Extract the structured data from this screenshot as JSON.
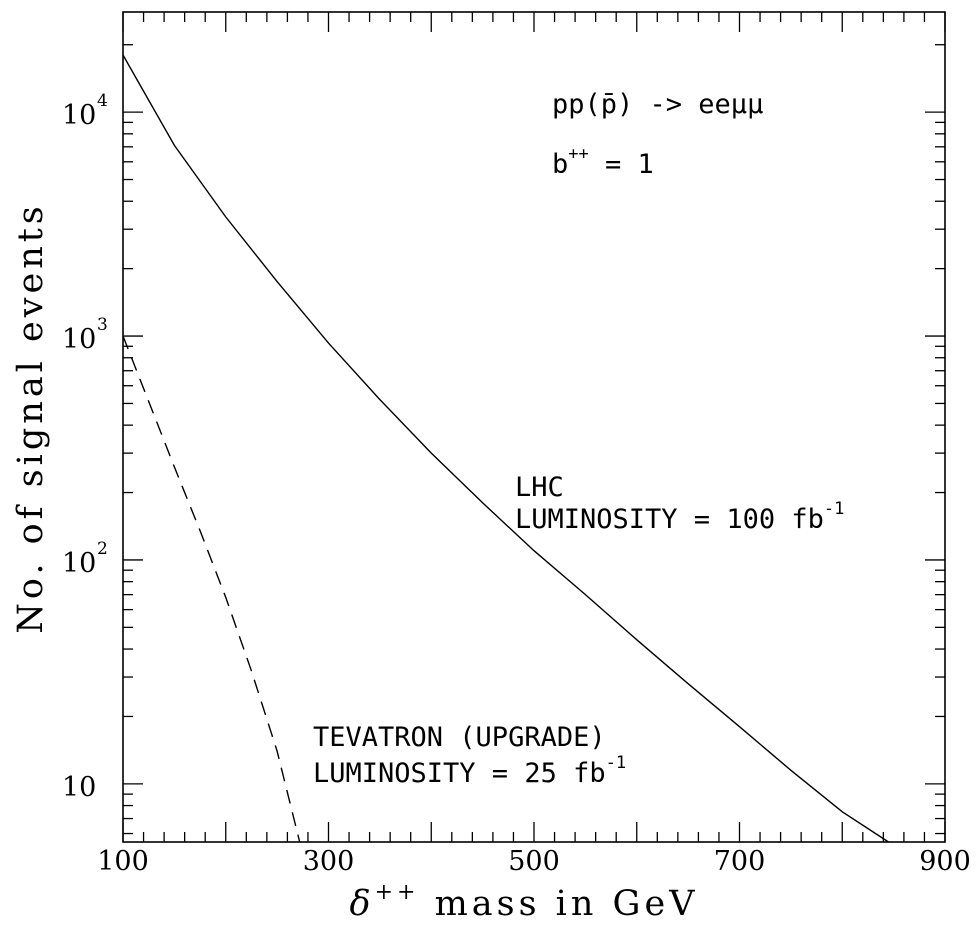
{
  "chart_data": {
    "type": "line",
    "xlabel_symbol": "δ",
    "xlabel_sup": "++",
    "xlabel_rest": " mass  in  GeV",
    "ylabel": "No.  of  signal  events",
    "xlim": [
      100,
      900
    ],
    "ylim": [
      5.5,
      28000
    ],
    "yscale": "log",
    "grid": false,
    "x_ticks": [
      "100",
      "300",
      "500",
      "700",
      "900"
    ],
    "y_ticks": [
      {
        "base": "10",
        "exp": "",
        "value": 10
      },
      {
        "base": "10",
        "exp": "2",
        "value": 100
      },
      {
        "base": "10",
        "exp": "3",
        "value": 1000
      },
      {
        "base": "10",
        "exp": "4",
        "value": 10000
      }
    ],
    "series": [
      {
        "style": "solid",
        "x": [
          100,
          150,
          200,
          250,
          300,
          350,
          400,
          450,
          500,
          550,
          600,
          650,
          700,
          750,
          800,
          845
        ],
        "y": [
          18000,
          7100,
          3400,
          1750,
          930,
          520,
          300,
          180,
          110,
          70,
          44,
          28,
          18,
          11.5,
          7.5,
          5.5
        ]
      },
      {
        "style": "dashed",
        "x": [
          100,
          125,
          150,
          175,
          200,
          225,
          250,
          272
        ],
        "y": [
          1000,
          510,
          260,
          135,
          68,
          32,
          14,
          5.5
        ]
      }
    ],
    "annotations": {
      "process": "pp(p̄)  -> eeμμ",
      "coupling_base": "b",
      "coupling_sup": "++",
      "coupling_rest": "  =  1",
      "lhc_name": "LHC",
      "lhc_lumi": "LUMINOSITY  =  100  fb",
      "lhc_lumi_sup": "-1",
      "tev_name": "TEVATRON (UPGRADE)",
      "tev_lumi": "LUMINOSITY  =  25  fb",
      "tev_lumi_sup": "-1"
    }
  }
}
